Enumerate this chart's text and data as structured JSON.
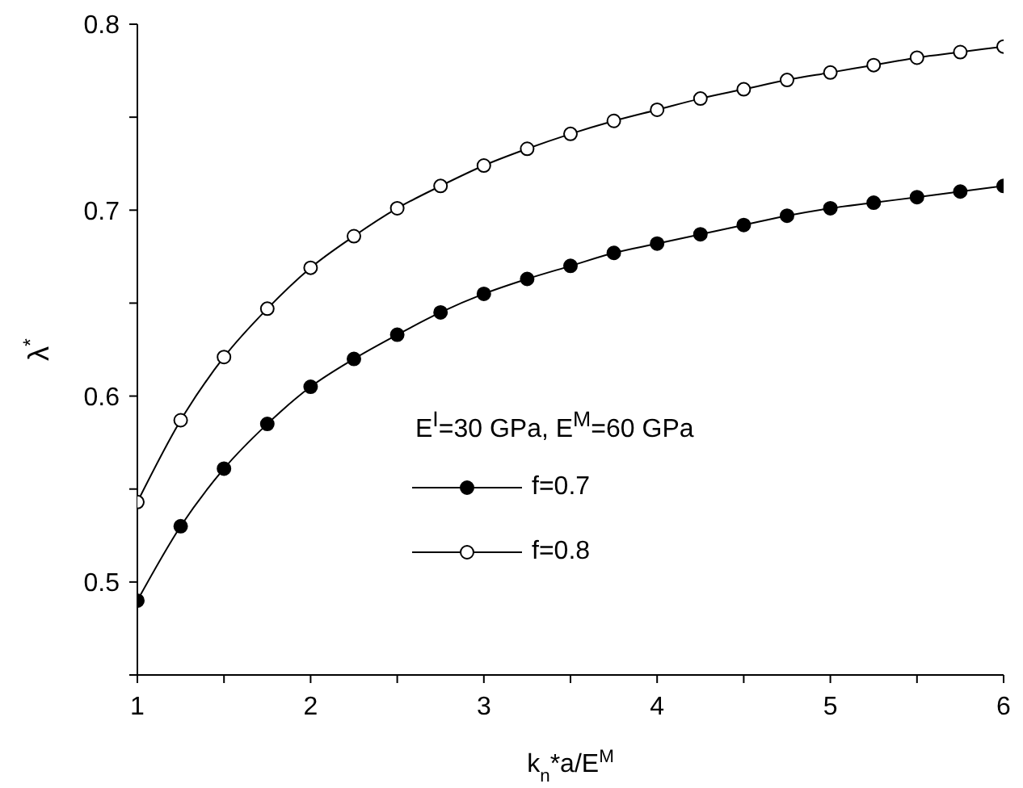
{
  "chart_data": {
    "type": "line",
    "xlabel": "k$_{n}$*a/E$^{M}$",
    "ylabel": "λ$^{*}$",
    "annotations": [
      "E$^{I}$=30 GPa, E$^{M}$=60 GPa"
    ],
    "x": [
      1,
      1.25,
      1.5,
      1.75,
      2,
      2.25,
      2.5,
      2.75,
      3,
      3.25,
      3.5,
      3.75,
      4,
      4.25,
      4.5,
      4.75,
      5,
      5.25,
      5.5,
      5.75,
      6
    ],
    "series": [
      {
        "name": "f=0.7",
        "color": "#000000",
        "values": [
          0.49,
          0.53,
          0.561,
          0.585,
          0.605,
          0.62,
          0.633,
          0.645,
          0.655,
          0.663,
          0.67,
          0.677,
          0.682,
          0.687,
          0.692,
          0.697,
          0.701,
          0.704,
          0.707,
          0.71,
          0.713
        ]
      },
      {
        "name": "f=0.8",
        "color": "#000000",
        "values": [
          0.543,
          0.587,
          0.621,
          0.647,
          0.669,
          0.686,
          0.701,
          0.713,
          0.724,
          0.733,
          0.741,
          0.748,
          0.754,
          0.76,
          0.765,
          0.77,
          0.774,
          0.778,
          0.782,
          0.785,
          0.788
        ]
      }
    ],
    "xlim": [
      1,
      6
    ],
    "ylim": [
      0.45,
      0.8
    ],
    "xticks": [
      1,
      {
        "value": 1.5,
        "label": null
      },
      2,
      {
        "value": 2.5,
        "label": null
      },
      3,
      {
        "value": 3.5,
        "label": null
      },
      4,
      {
        "value": 4.5,
        "label": null
      },
      5,
      {
        "value": 5.5,
        "label": null
      },
      6
    ],
    "yticks": [
      {
        "value": 0.45,
        "label": null
      },
      0.5,
      {
        "value": 0.55,
        "label": null
      },
      0.6,
      {
        "value": 0.65,
        "label": null
      },
      0.7,
      {
        "value": 0.75,
        "label": null
      },
      0.8
    ],
    "grid": false,
    "legend": "bottom",
    "marker": "circle",
    "line_style": "solid"
  }
}
